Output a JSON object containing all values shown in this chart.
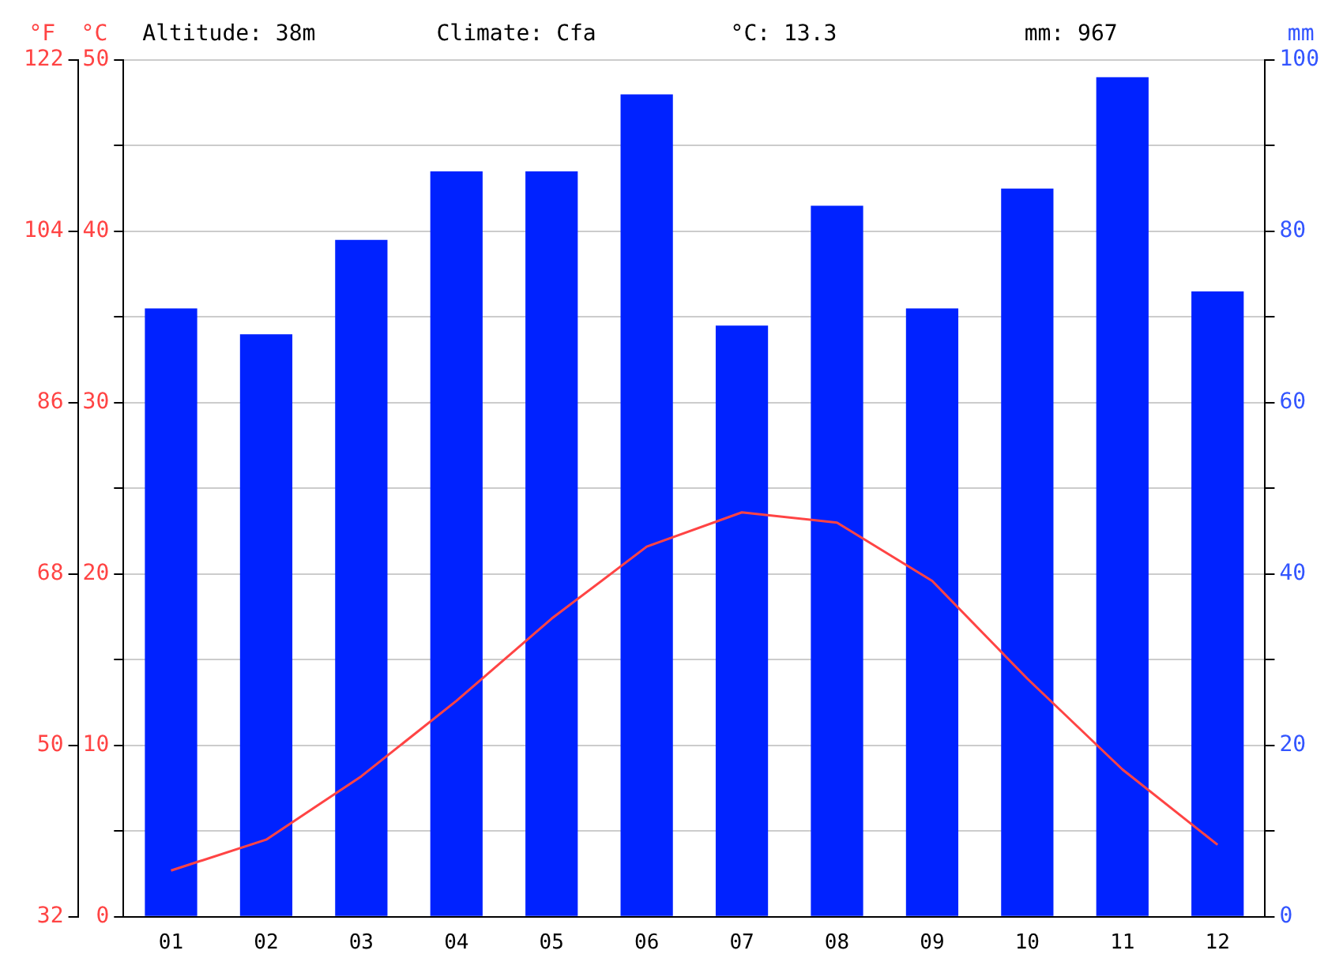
{
  "chart_data": {
    "type": "bar",
    "annotations": [
      "Altitude: 38m",
      "Climate: Cfa",
      "°C: 13.3",
      "mm: 967"
    ],
    "ylabel": "°C",
    "y2label": "mm",
    "y3label": "°F",
    "categories": [
      "01",
      "02",
      "03",
      "04",
      "05",
      "06",
      "07",
      "08",
      "09",
      "10",
      "11",
      "12"
    ],
    "series": [
      {
        "axis": "y2",
        "color": "#0022ff",
        "values": [
          71,
          68,
          79,
          87,
          87,
          96,
          69,
          83,
          71,
          85,
          98,
          73
        ]
      },
      {
        "type": "line",
        "axis": "y",
        "color": "#ff4444",
        "marker": "none",
        "line_style": "solid",
        "values": [
          2.7,
          4.5,
          8.2,
          12.6,
          17.4,
          21.6,
          23.6,
          23.0,
          19.6,
          13.9,
          8.6,
          4.2
        ]
      }
    ],
    "ylim": [
      0,
      50
    ],
    "yticks": [
      0,
      {
        "value": 5,
        "label": null
      },
      10,
      {
        "value": 15,
        "label": null
      },
      20,
      {
        "value": 25,
        "label": null
      },
      30,
      {
        "value": 35,
        "label": null
      },
      40,
      {
        "value": 45,
        "label": null
      },
      50
    ],
    "y2lim": [
      0,
      100
    ],
    "y2ticks": [
      0,
      {
        "value": 10,
        "label": null
      },
      20,
      {
        "value": 30,
        "label": null
      },
      40,
      {
        "value": 50,
        "label": null
      },
      60,
      {
        "value": 70,
        "label": null
      },
      80,
      {
        "value": 90,
        "label": null
      },
      100
    ],
    "y3lim": [
      32,
      122
    ],
    "y3ticks": [
      32,
      50,
      68,
      86,
      104,
      122
    ],
    "grid": "y",
    "legend": false
  }
}
